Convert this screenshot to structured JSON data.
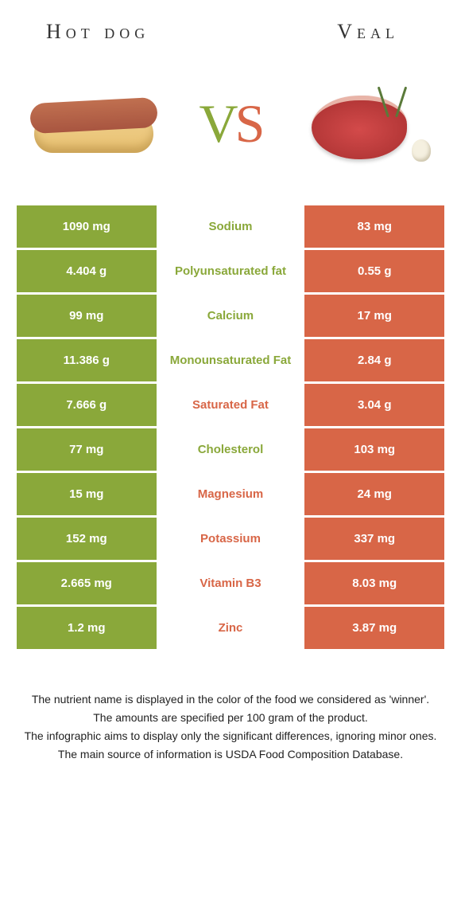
{
  "foods": {
    "left": {
      "title": "Hot dog",
      "color": "#8aa83a"
    },
    "right": {
      "title": "Veal",
      "color": "#d86647"
    }
  },
  "vs_label": {
    "v": "V",
    "s": "S"
  },
  "rows": [
    {
      "left": "1090 mg",
      "label": "Sodium",
      "right": "83 mg",
      "winner": "left"
    },
    {
      "left": "4.404 g",
      "label": "Polyunsaturated fat",
      "right": "0.55 g",
      "winner": "left"
    },
    {
      "left": "99 mg",
      "label": "Calcium",
      "right": "17 mg",
      "winner": "left"
    },
    {
      "left": "11.386 g",
      "label": "Monounsaturated Fat",
      "right": "2.84 g",
      "winner": "left"
    },
    {
      "left": "7.666 g",
      "label": "Saturated Fat",
      "right": "3.04 g",
      "winner": "right"
    },
    {
      "left": "77 mg",
      "label": "Cholesterol",
      "right": "103 mg",
      "winner": "left"
    },
    {
      "left": "15 mg",
      "label": "Magnesium",
      "right": "24 mg",
      "winner": "right"
    },
    {
      "left": "152 mg",
      "label": "Potassium",
      "right": "337 mg",
      "winner": "right"
    },
    {
      "left": "2.665 mg",
      "label": "Vitamin B3",
      "right": "8.03 mg",
      "winner": "right"
    },
    {
      "left": "1.2 mg",
      "label": "Zinc",
      "right": "3.87 mg",
      "winner": "right"
    }
  ],
  "footer": {
    "line1": "The nutrient name is displayed in the color of the food we considered as 'winner'.",
    "line2": "The amounts are specified per 100 gram of the product.",
    "line3": "The infographic aims to display only the significant differences, ignoring minor ones.",
    "line4": "The main source of information is USDA Food Composition Database."
  }
}
